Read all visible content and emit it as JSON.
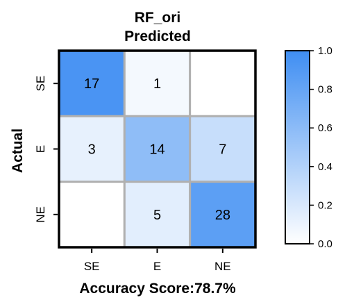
{
  "chart_data": {
    "type": "heatmap",
    "title": "RF_ori",
    "subtitle": "Predicted",
    "ylabel": "Actual",
    "xlabel": "Accuracy Score:78.7%",
    "row_labels": [
      "SE",
      "E",
      "NE"
    ],
    "col_labels": [
      "SE",
      "E",
      "NE"
    ],
    "values": [
      [
        17,
        1,
        0
      ],
      [
        3,
        14,
        7
      ],
      [
        0,
        5,
        28
      ]
    ],
    "value_labels": [
      [
        "17",
        "1",
        ""
      ],
      [
        "3",
        "14",
        "7"
      ],
      [
        "",
        "5",
        "28"
      ]
    ],
    "row_normalized": [
      [
        0.944,
        0.056,
        0.0
      ],
      [
        0.125,
        0.583,
        0.292
      ],
      [
        0.0,
        0.152,
        0.848
      ]
    ],
    "colorbar": {
      "range": [
        0.0,
        1.0
      ],
      "ticks": [
        "0.0",
        "0.2",
        "0.4",
        "0.6",
        "0.8",
        "1.0"
      ],
      "color_min": "#ffffff",
      "color_max": "#3f8ef2"
    },
    "grid_color": "#b0b0b0",
    "frame_color": "#000000"
  }
}
